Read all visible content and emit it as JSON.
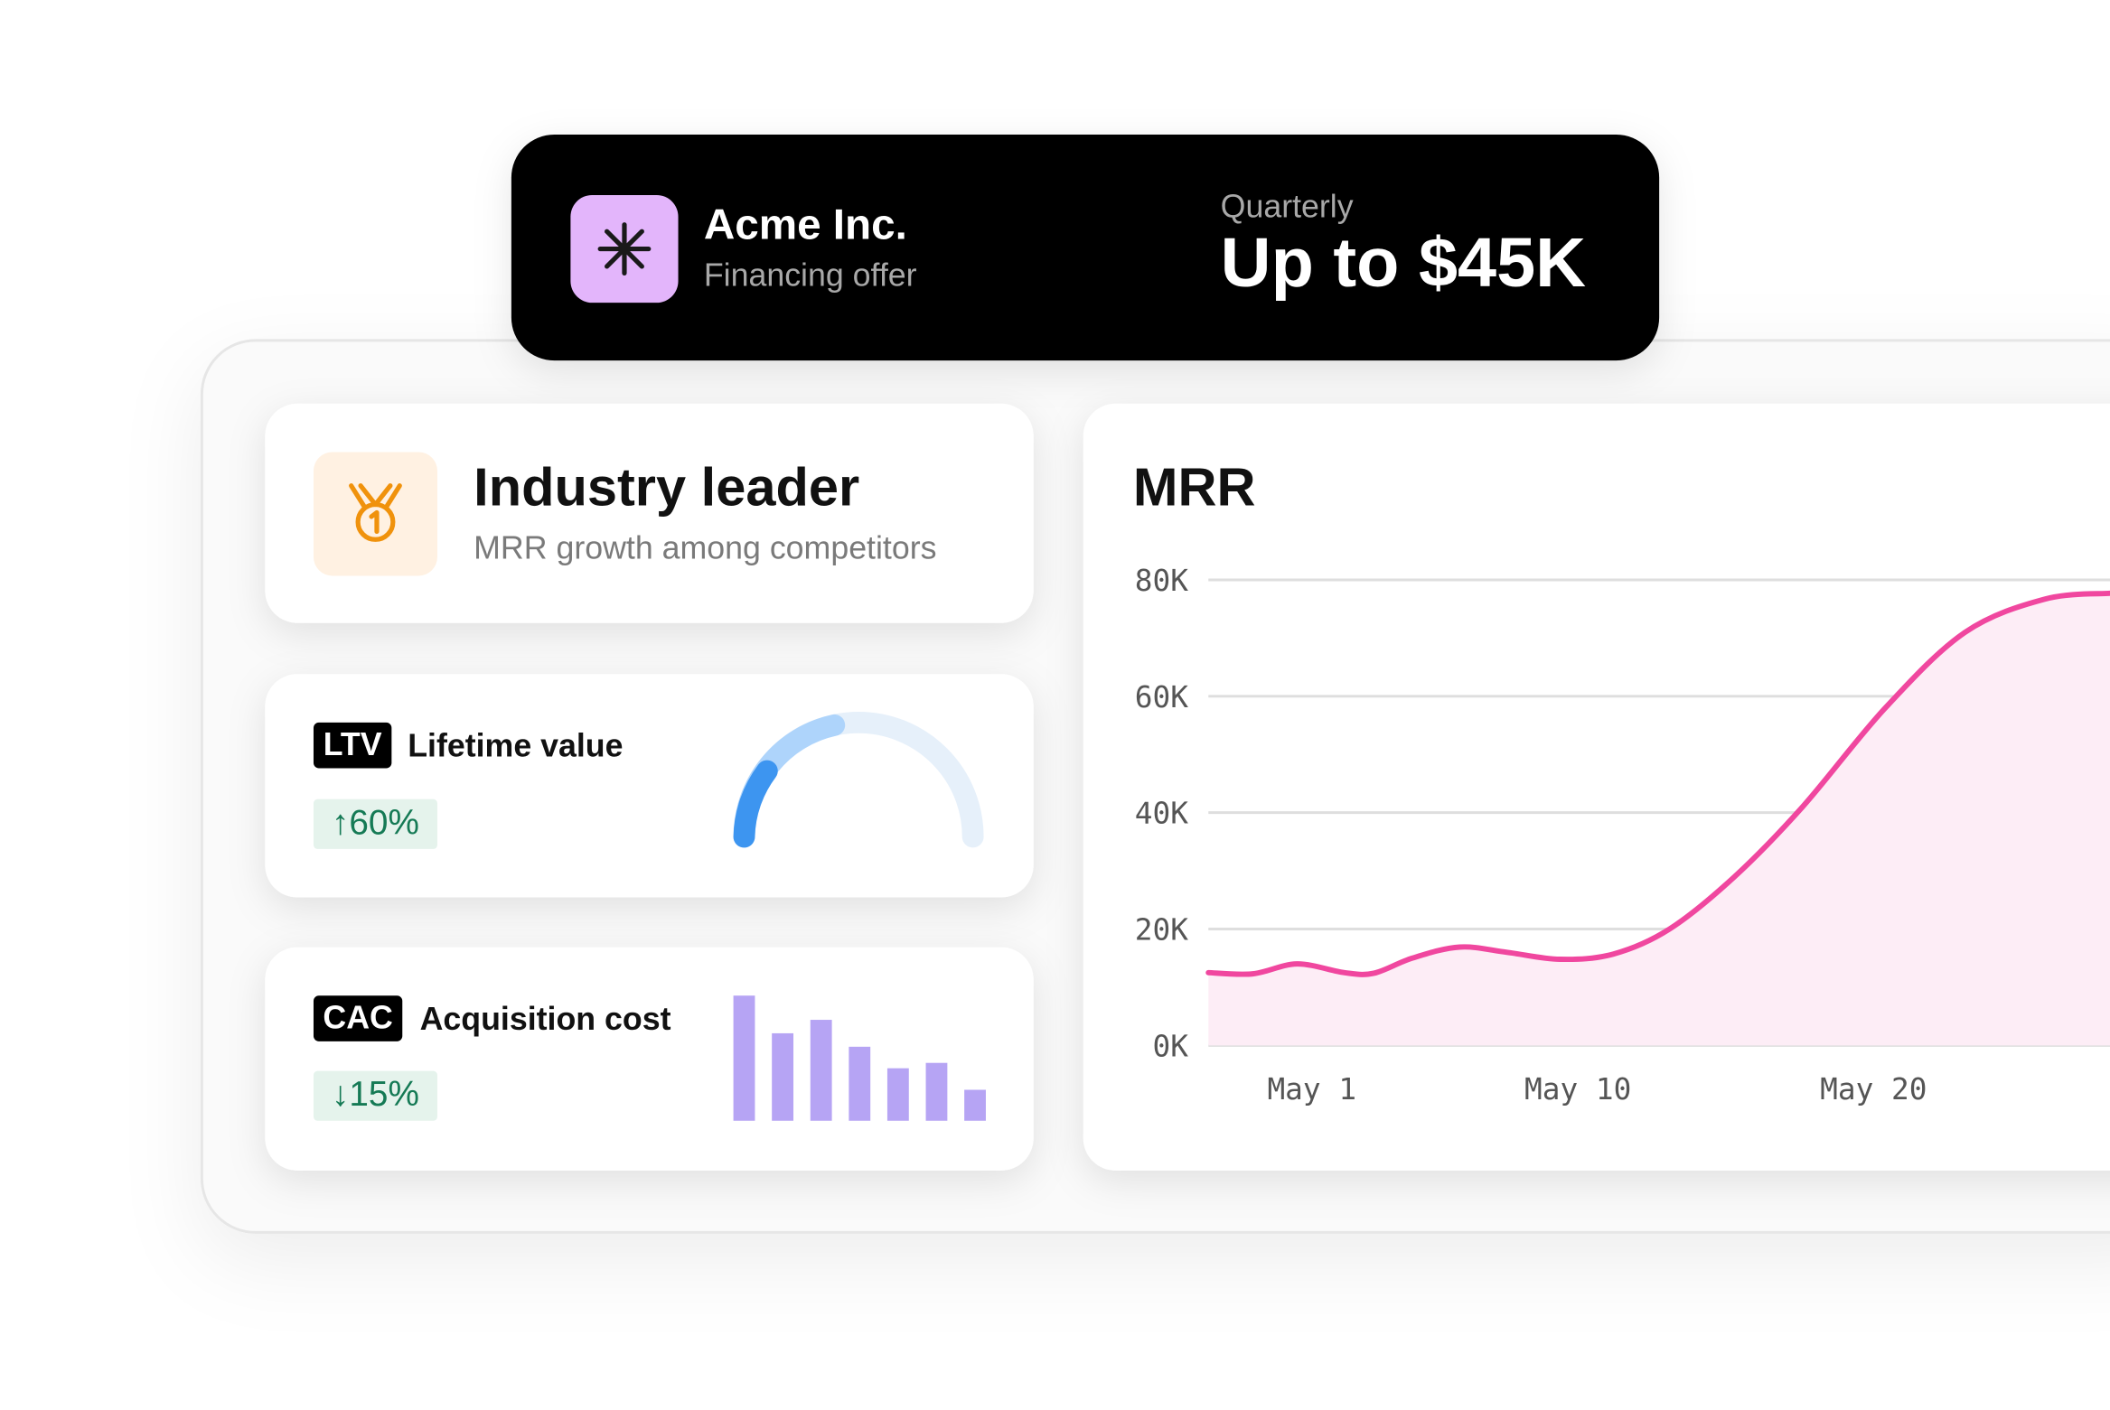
{
  "offer": {
    "company": "Acme Inc.",
    "subtitle": "Financing offer",
    "period": "Quarterly",
    "amount": "Up to $45K"
  },
  "leader": {
    "title": "Industry leader",
    "subtitle": "MRR growth among competitors"
  },
  "ltv": {
    "badge": "LTV",
    "label": "Lifetime value",
    "change": "↑60%"
  },
  "cac": {
    "badge": "CAC",
    "label": "Acquisition cost",
    "change": "↓15%"
  },
  "chart_data": [
    {
      "type": "line",
      "title": "MRR",
      "x": [
        -2.5,
        -1.0,
        0.5,
        2.1,
        3.1,
        4.4,
        6.0,
        7.6,
        9.4,
        11.2,
        13.1,
        15.3,
        17.6,
        20.4,
        23.1,
        25.8,
        28.0
      ],
      "series": [
        {
          "color": "#f0479f",
          "values": [
            12500,
            12300,
            14000,
            12500,
            12400,
            15000,
            16900,
            16000,
            14800,
            15700,
            20000,
            29000,
            41000,
            58000,
            71000,
            76700,
            77700
          ]
        }
      ],
      "xlim": [
        -2.5,
        28.0
      ],
      "xticks": [
        {
          "value": 1,
          "label": "May 1"
        },
        {
          "value": 10,
          "label": "May 10"
        },
        {
          "value": 20,
          "label": "May 20"
        }
      ],
      "ylim": [
        0,
        80000
      ],
      "yticks": [
        {
          "value": 0,
          "label": "0K"
        },
        {
          "value": 20000,
          "label": "20K"
        },
        {
          "value": 40000,
          "label": "40K"
        },
        {
          "value": 60000,
          "label": "60K"
        },
        {
          "value": 80000,
          "label": "80K"
        }
      ],
      "grid": true,
      "area_color": "#fdedf6"
    },
    {
      "type": "bar",
      "values": [
        93,
        65,
        75,
        55,
        39,
        43,
        23
      ],
      "color": "#b6a4f4",
      "ylim": [
        0,
        100
      ]
    }
  ]
}
